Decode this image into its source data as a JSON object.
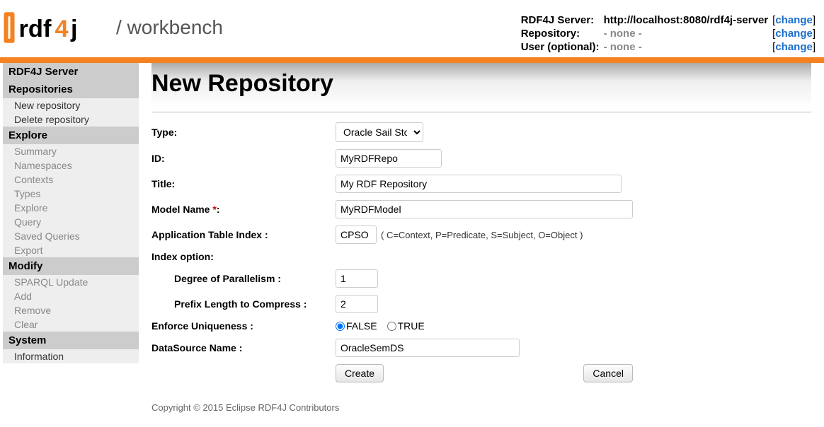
{
  "branding": {
    "product_prefix": "rdf",
    "product_suffix": "j",
    "tagline": "/ workbench"
  },
  "header": {
    "server_label": "RDF4J Server:",
    "server_value": "http://localhost:8080/rdf4j-server",
    "repo_label": "Repository:",
    "repo_value": "- none -",
    "user_label": "User (optional):",
    "user_value": "- none -",
    "change_text": "change"
  },
  "sidebar": {
    "server_header": "RDF4J Server",
    "repositories_header": "Repositories",
    "repositories": [
      {
        "label": "New repository"
      },
      {
        "label": "Delete repository"
      }
    ],
    "explore_header": "Explore",
    "explore": [
      {
        "label": "Summary"
      },
      {
        "label": "Namespaces"
      },
      {
        "label": "Contexts"
      },
      {
        "label": "Types"
      },
      {
        "label": "Explore"
      },
      {
        "label": "Query"
      },
      {
        "label": "Saved Queries"
      },
      {
        "label": "Export"
      }
    ],
    "modify_header": "Modify",
    "modify": [
      {
        "label": "SPARQL Update"
      },
      {
        "label": "Add"
      },
      {
        "label": "Remove"
      },
      {
        "label": "Clear"
      }
    ],
    "system_header": "System",
    "system": [
      {
        "label": "Information"
      }
    ]
  },
  "page": {
    "title": "New Repository",
    "labels": {
      "type": "Type:",
      "id": "ID:",
      "title": "Title:",
      "model_name": "Model Name ",
      "model_req": "*",
      "model_suffix": ":",
      "app_index": "Application Table Index :",
      "index_option": "Index option:",
      "degree": "Degree of Parallelism :",
      "prefix": "Prefix Length to Compress :",
      "enforce": "Enforce Uniqueness :",
      "datasource": "DataSource Name :"
    },
    "values": {
      "type_selected": "Oracle Sail Store",
      "id": "MyRDFRepo",
      "title": "My RDF Repository",
      "model": "MyRDFModel",
      "app_index": "CPSO",
      "app_index_hint": "( C=Context, P=Predicate, S=Subject, O=Object )",
      "degree": "1",
      "prefix": "2",
      "enforce_false": "FALSE",
      "enforce_true": "TRUE",
      "datasource": "OracleSemDS"
    },
    "buttons": {
      "create": "Create",
      "cancel": "Cancel"
    }
  },
  "footer": {
    "copyright": "Copyright © 2015 Eclipse RDF4J Contributors"
  },
  "colors": {
    "accent": "#f58220",
    "link": "#1a6ecc"
  }
}
